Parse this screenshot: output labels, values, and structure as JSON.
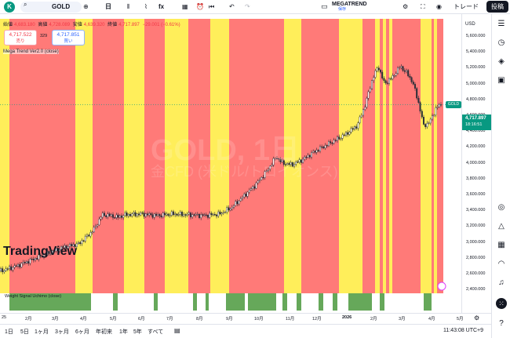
{
  "toolbar": {
    "logo_letter": "K",
    "symbol": "GOLD",
    "interval": "日",
    "indicator_label": "fx",
    "trade_label": "トレード",
    "publish_label": "投稿"
  },
  "megatrend": {
    "name": "MEGATREND",
    "subtitle": "保存"
  },
  "legend": {
    "open_label": "始値",
    "open": "4,683.180",
    "high_label": "高値",
    "high": "4,728.089",
    "low_label": "安値",
    "low": "4,639.320",
    "close_label": "終値",
    "close": "4,717.897",
    "change": "−29.001 (−0.61%)",
    "sell_price": "4,717.522",
    "sell_label": "売り",
    "spread": "329",
    "buy_price": "4,717.851",
    "buy_label": "買い",
    "indicator_title": "Mega Trend Ver2.0 (close)",
    "sub_indicator": "Weight Signal Uchimo (close)"
  },
  "watermark": {
    "symbol": "GOLD, 1日",
    "description": "金CFD (米ドル/トロイオンス)"
  },
  "tv_logo": "TradingView",
  "price_axis": {
    "currency": "USD",
    "ticks": [
      "5,600.000",
      "5,400.000",
      "5,200.000",
      "5,000.000",
      "4,800.000",
      "4,600.000",
      "4,400.000",
      "4,200.000",
      "4,000.000",
      "3,800.000",
      "3,600.000",
      "3,400.000",
      "3,200.000",
      "3,000.000",
      "2,800.000",
      "2,600.000",
      "2,400.000"
    ],
    "last_price": "4,717.897",
    "countdown": "18:16:51",
    "symbol_tag": "GOLD"
  },
  "time_axis": {
    "ticks": [
      {
        "label": "25",
        "bold": false
      },
      {
        "label": "2月",
        "bold": false
      },
      {
        "label": "3月",
        "bold": false
      },
      {
        "label": "4月",
        "bold": false
      },
      {
        "label": "5月",
        "bold": false
      },
      {
        "label": "6月",
        "bold": false
      },
      {
        "label": "7月",
        "bold": false
      },
      {
        "label": "8月",
        "bold": false
      },
      {
        "label": "9月",
        "bold": false
      },
      {
        "label": "10月",
        "bold": false
      },
      {
        "label": "11月",
        "bold": false
      },
      {
        "label": "12月",
        "bold": false
      },
      {
        "label": "2026",
        "bold": true
      },
      {
        "label": "2月",
        "bold": false
      },
      {
        "label": "3月",
        "bold": false
      },
      {
        "label": "4月",
        "bold": false
      },
      {
        "label": "5月",
        "bold": false
      }
    ]
  },
  "ranges": [
    "1日",
    "5日",
    "1ヶ月",
    "3ヶ月",
    "6ヶ月",
    "年初来",
    "1年",
    "5年",
    "すべて"
  ],
  "clock": "11:43:08 UTC+9",
  "colors": {
    "red_zone": "#ff7a78",
    "yellow_zone": "#ffee5a",
    "green_signal": "#66a85a",
    "up_candle": "#089981",
    "accent": "#2962ff"
  },
  "sidebar_icons": [
    "watchlist-icon",
    "alerts-icon",
    "layers-icon",
    "data-window-icon",
    "target-icon",
    "ideas-icon",
    "calendar-icon",
    "stream-icon",
    "notifications-icon",
    "apps-icon",
    "help-icon"
  ]
}
